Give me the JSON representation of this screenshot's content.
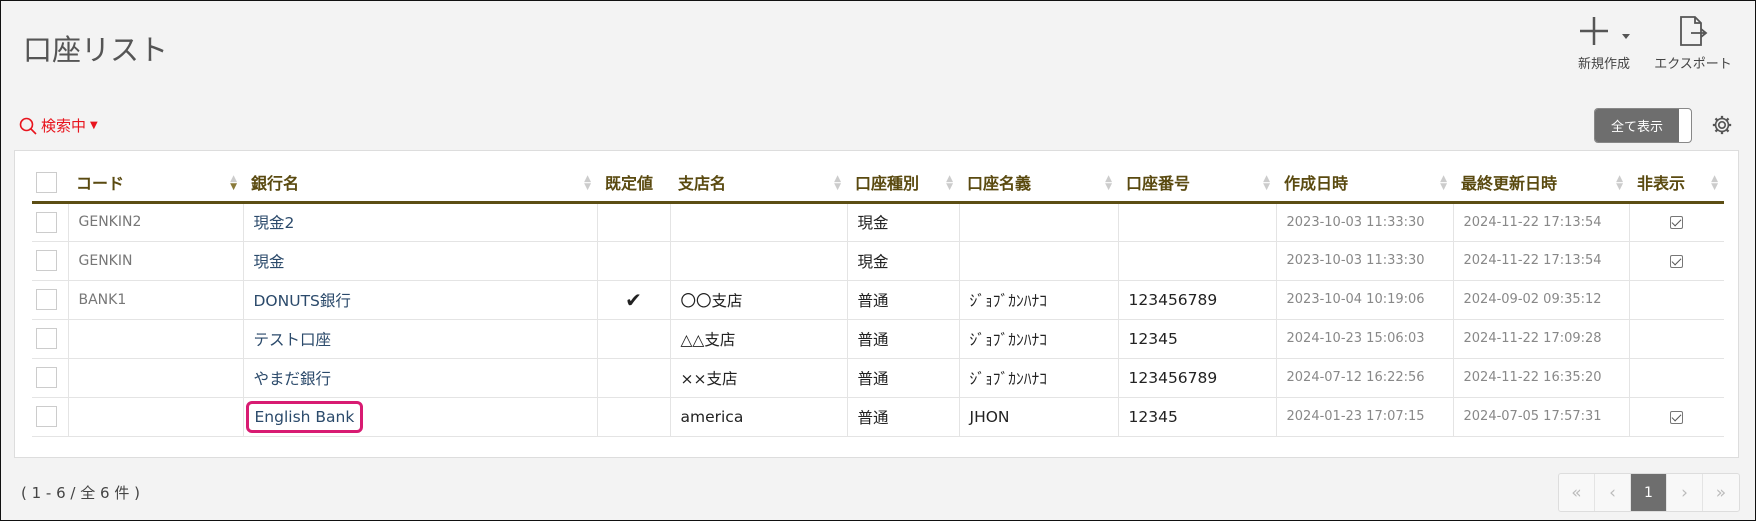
{
  "header": {
    "title": "口座リスト",
    "new_label": "新規作成",
    "export_label": "エクスポート"
  },
  "search": {
    "label": "検索中"
  },
  "toggle": {
    "label": "全て表示"
  },
  "table": {
    "columns": [
      "コード",
      "銀行名",
      "既定値",
      "支店名",
      "口座種別",
      "口座名義",
      "口座番号",
      "作成日時",
      "最終更新日時",
      "非表示"
    ],
    "rows": [
      {
        "code": "GENKIN2",
        "bank": "現金2",
        "default": "",
        "branch": "",
        "type": "現金",
        "holder": "",
        "number": "",
        "created": "2023-10-03 11:33:30",
        "updated": "2024-11-22 17:13:54",
        "hidden": true
      },
      {
        "code": "GENKIN",
        "bank": "現金",
        "default": "",
        "branch": "",
        "type": "現金",
        "holder": "",
        "number": "",
        "created": "2023-10-03 11:33:30",
        "updated": "2024-11-22 17:13:54",
        "hidden": true
      },
      {
        "code": "BANK1",
        "bank": "DONUTS銀行",
        "default": "✔",
        "branch": "〇〇支店",
        "type": "普通",
        "holder": "ｼﾞｮﾌﾞｶﾝﾊﾅｺ",
        "number": "123456789",
        "created": "2023-10-04 10:19:06",
        "updated": "2024-09-02 09:35:12",
        "hidden": false
      },
      {
        "code": "",
        "bank": "テスト口座",
        "default": "",
        "branch": "△△支店",
        "type": "普通",
        "holder": "ｼﾞｮﾌﾞｶﾝﾊﾅｺ",
        "number": "12345",
        "created": "2024-10-23 15:06:03",
        "updated": "2024-11-22 17:09:28",
        "hidden": false
      },
      {
        "code": "",
        "bank": "やまだ銀行",
        "default": "",
        "branch": "××支店",
        "type": "普通",
        "holder": "ｼﾞｮﾌﾞｶﾝﾊﾅｺ",
        "number": "123456789",
        "created": "2024-07-12 16:22:56",
        "updated": "2024-11-22 16:35:20",
        "hidden": false
      },
      {
        "code": "",
        "bank": "English Bank",
        "default": "",
        "branch": "america",
        "type": "普通",
        "holder": "JHON",
        "number": "12345",
        "created": "2024-01-23 17:07:15",
        "updated": "2024-07-05 17:57:31",
        "hidden": true,
        "highlighted": true
      }
    ]
  },
  "footer": {
    "count": "( 1 - 6 / 全 6 件 )"
  },
  "pager": {
    "first": "«",
    "prev": "‹",
    "current": "1",
    "next": "›",
    "last": "»"
  },
  "colors": {
    "accent_red": "#e8141d",
    "header_brown": "#5c4e14",
    "highlight": "#d81b72"
  }
}
